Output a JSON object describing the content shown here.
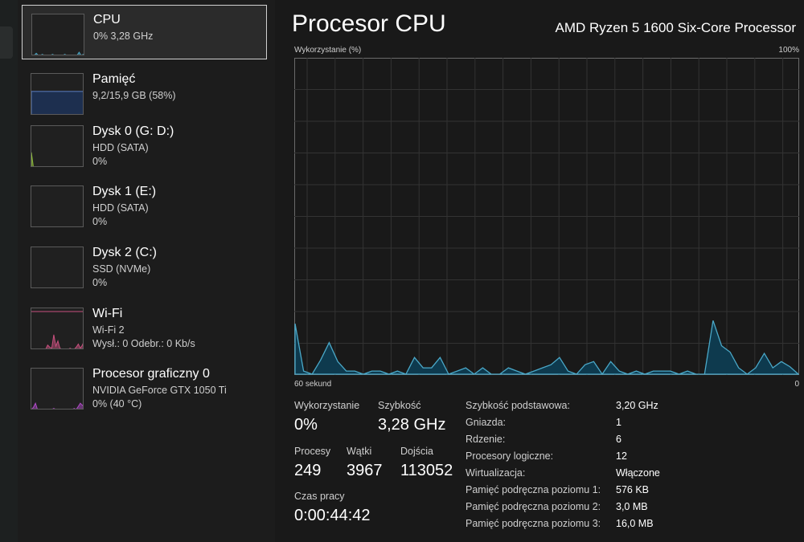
{
  "sidebar": {
    "items": [
      {
        "title": "CPU",
        "sub1": "0%  3,28 GHz",
        "sub2": "",
        "color": "#4aa8c8"
      },
      {
        "title": "Pamięć",
        "sub1": "9,2/15,9 GB (58%)",
        "sub2": "",
        "color": "#5b7fc4",
        "fill_percent": 58
      },
      {
        "title": "Dysk 0 (G: D:)",
        "sub1": "HDD (SATA)",
        "sub2": "0%",
        "color": "#8cb83a"
      },
      {
        "title": "Dysk 1 (E:)",
        "sub1": "HDD (SATA)",
        "sub2": "0%",
        "color": "#8cb83a"
      },
      {
        "title": "Dysk 2 (C:)",
        "sub1": "SSD (NVMe)",
        "sub2": "0%",
        "color": "#8cb83a"
      },
      {
        "title": "Wi-Fi",
        "sub1": "Wi-Fi 2",
        "sub2": "Wysł.: 0 Odebr.: 0 Kb/s",
        "color": "#c8507e"
      },
      {
        "title": "Procesor graficzny 0",
        "sub1": "NVIDIA GeForce GTX 1050 Ti",
        "sub2": "0%  (40 °C)",
        "color": "#b04ac8"
      }
    ]
  },
  "header": {
    "title": "Procesor CPU",
    "model": "AMD Ryzen 5 1600 Six-Core Processor"
  },
  "chart_data": {
    "type": "area",
    "ylabel": "Wykorzystanie (%)",
    "ymax_label": "100%",
    "xleft_label": "60 sekund",
    "xright_label": "0",
    "ylim": [
      0,
      100
    ],
    "grid": true,
    "color": "#4aa8c8",
    "values": [
      16,
      1,
      0,
      4.5,
      10,
      4,
      1,
      1,
      0,
      1,
      1,
      0,
      1,
      0,
      5.3,
      2,
      2,
      5.3,
      0,
      1,
      2,
      0,
      2,
      0,
      0,
      2,
      1,
      0,
      1,
      2,
      3,
      5.3,
      1,
      0,
      3,
      4,
      0,
      4,
      1,
      0,
      1,
      0,
      1,
      1,
      1,
      0,
      1,
      0,
      0,
      17,
      9,
      7,
      2,
      0,
      2,
      6.6,
      2,
      4,
      2.4,
      0
    ]
  },
  "stats": {
    "usage_label": "Wykorzystanie",
    "usage": "0%",
    "speed_label": "Szybkość",
    "speed": "3,28 GHz",
    "proc_label": "Procesy",
    "proc": "249",
    "threads_label": "Wątki",
    "threads": "3967",
    "handles_label": "Dojścia",
    "handles": "113052",
    "uptime_label": "Czas pracy",
    "uptime": "0:00:44:42"
  },
  "specs": [
    {
      "k": "Szybkość podstawowa:",
      "v": "3,20 GHz"
    },
    {
      "k": "Gniazda:",
      "v": "1"
    },
    {
      "k": "Rdzenie:",
      "v": "6"
    },
    {
      "k": "Procesory logiczne:",
      "v": "12"
    },
    {
      "k": "Wirtualizacja:",
      "v": "Włączone"
    },
    {
      "k": "Pamięć podręczna poziomu 1:",
      "v": "576 KB"
    },
    {
      "k": "Pamięć podręczna poziomu 2:",
      "v": "3,0 MB"
    },
    {
      "k": "Pamięć podręczna poziomu 3:",
      "v": "16,0 MB"
    }
  ]
}
